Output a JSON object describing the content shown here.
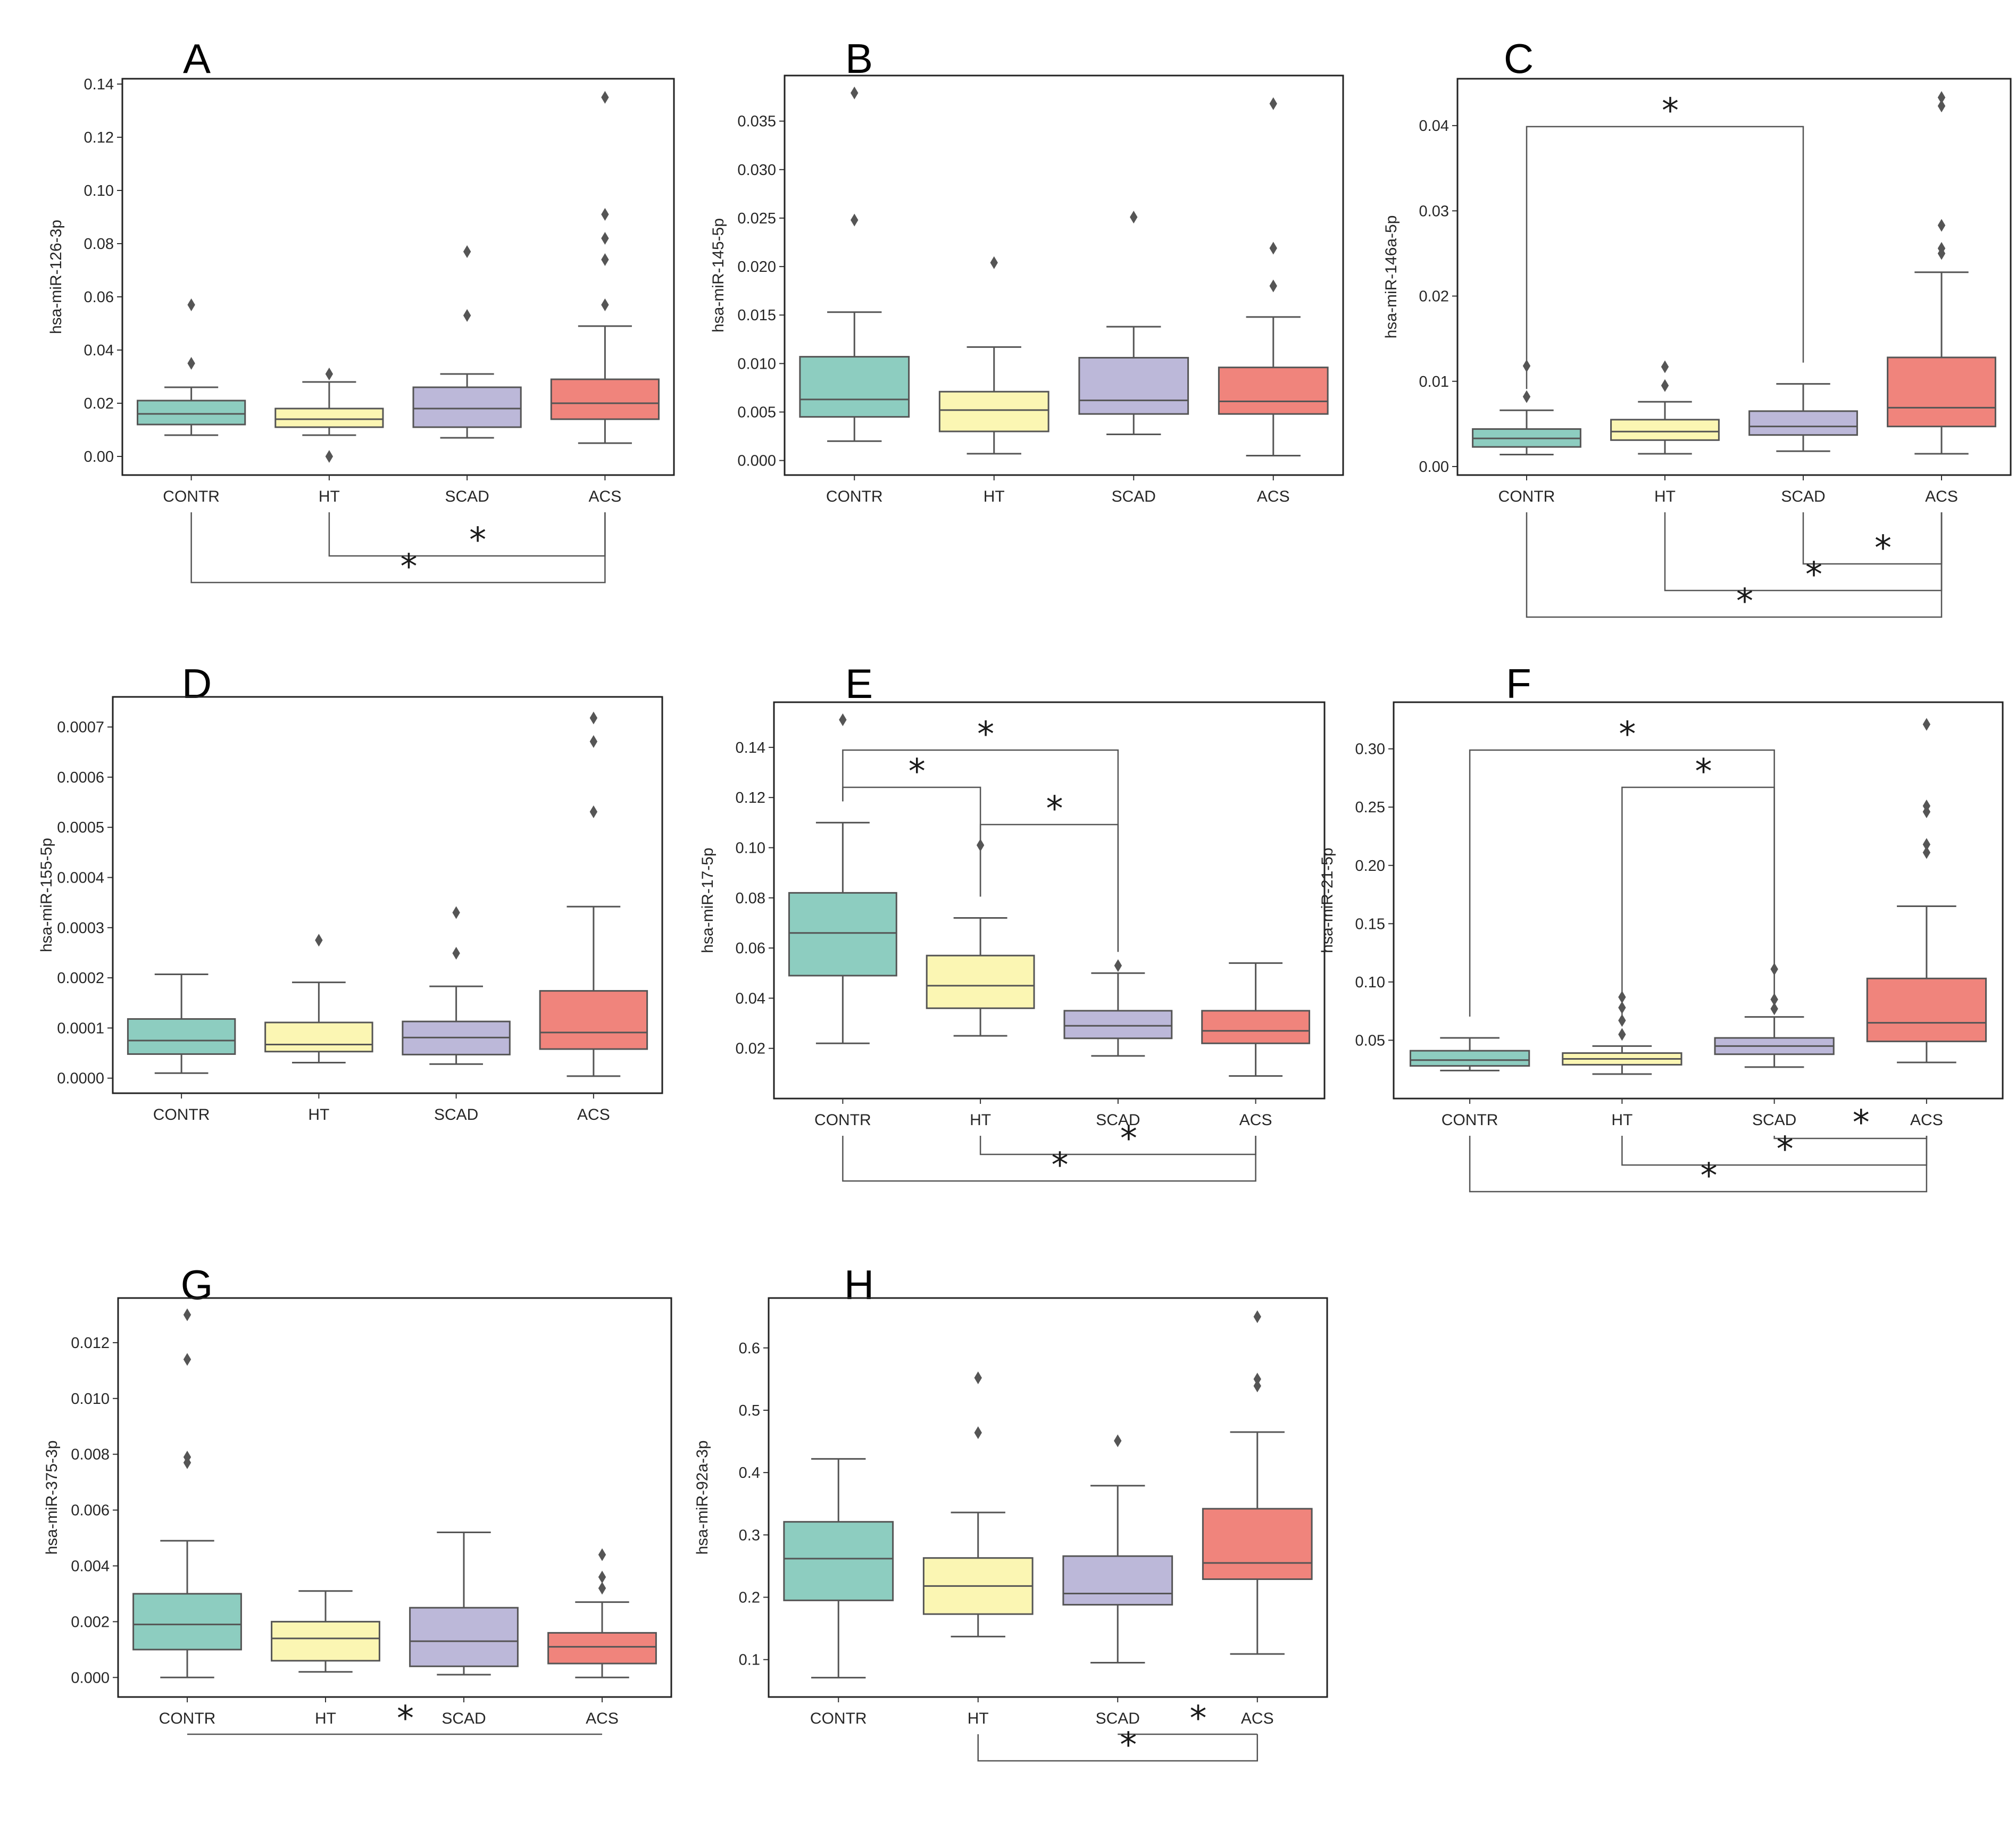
{
  "figure": {
    "group_labels": [
      "CONTR",
      "HT",
      "SCAD",
      "ACS"
    ]
  },
  "colors": {
    "CONTR": "#8dcdc0",
    "HT": "#fbf6b3",
    "SCAD": "#bcb8d9",
    "ACS": "#f0847c",
    "edge": "#555555",
    "outlier": "#555555",
    "bracket": "#555555",
    "frame": "#222222"
  },
  "chart_data": [
    {
      "panel": "A",
      "type": "box",
      "ylabel": "hsa-miR-126-3p",
      "categories": [
        "CONTR",
        "HT",
        "SCAD",
        "ACS"
      ],
      "ylim": [
        -0.007,
        0.142
      ],
      "yticks": [
        0.0,
        0.02,
        0.04,
        0.06,
        0.08,
        0.1,
        0.12,
        0.14
      ],
      "yticklabels": [
        "0.00",
        "0.02",
        "0.04",
        "0.06",
        "0.08",
        "0.10",
        "0.12",
        "0.14"
      ],
      "boxes": [
        {
          "group": "CONTR",
          "whislo": 0.008,
          "q1": 0.012,
          "med": 0.016,
          "q3": 0.021,
          "whishi": 0.026,
          "fliers": [
            0.035,
            0.057
          ]
        },
        {
          "group": "HT",
          "whislo": 0.008,
          "q1": 0.011,
          "med": 0.014,
          "q3": 0.018,
          "whishi": 0.028,
          "fliers": [
            0.031,
            0.0
          ]
        },
        {
          "group": "SCAD",
          "whislo": 0.007,
          "q1": 0.011,
          "med": 0.018,
          "q3": 0.026,
          "whishi": 0.031,
          "fliers": [
            0.053,
            0.077
          ]
        },
        {
          "group": "ACS",
          "whislo": 0.005,
          "q1": 0.014,
          "med": 0.02,
          "q3": 0.029,
          "whishi": 0.049,
          "fliers": [
            0.057,
            0.074,
            0.082,
            0.091,
            0.135
          ]
        }
      ],
      "significance": [
        {
          "from": "HT",
          "to": "ACS",
          "position": "below",
          "label": "*"
        },
        {
          "from": "CONTR",
          "to": "ACS",
          "position": "below",
          "label": "*"
        }
      ]
    },
    {
      "panel": "B",
      "type": "box",
      "ylabel": "hsa-miR-145-5p",
      "categories": [
        "CONTR",
        "HT",
        "SCAD",
        "ACS"
      ],
      "ylim": [
        -0.0015,
        0.0397
      ],
      "yticks": [
        0.0,
        0.005,
        0.01,
        0.015,
        0.02,
        0.025,
        0.03,
        0.035
      ],
      "yticklabels": [
        "0.000",
        "0.005",
        "0.010",
        "0.015",
        "0.020",
        "0.025",
        "0.030",
        "0.035"
      ],
      "boxes": [
        {
          "group": "CONTR",
          "whislo": 0.002,
          "q1": 0.0045,
          "med": 0.0063,
          "q3": 0.0107,
          "whishi": 0.0153,
          "fliers": [
            0.0248,
            0.0379
          ]
        },
        {
          "group": "HT",
          "whislo": 0.0007,
          "q1": 0.003,
          "med": 0.0052,
          "q3": 0.0071,
          "whishi": 0.0117,
          "fliers": [
            0.0204
          ]
        },
        {
          "group": "SCAD",
          "whislo": 0.0027,
          "q1": 0.0048,
          "med": 0.0062,
          "q3": 0.0106,
          "whishi": 0.0138,
          "fliers": [
            0.0251
          ]
        },
        {
          "group": "ACS",
          "whislo": 0.0005,
          "q1": 0.0048,
          "med": 0.0061,
          "q3": 0.0096,
          "whishi": 0.0148,
          "fliers": [
            0.018,
            0.0219,
            0.0368
          ]
        }
      ],
      "significance": []
    },
    {
      "panel": "C",
      "type": "box",
      "ylabel": "hsa-miR-146a-5p",
      "categories": [
        "CONTR",
        "HT",
        "SCAD",
        "ACS"
      ],
      "ylim": [
        -0.001,
        0.0455
      ],
      "yticks": [
        0.0,
        0.01,
        0.02,
        0.03,
        0.04
      ],
      "yticklabels": [
        "0.00",
        "0.01",
        "0.02",
        "0.03",
        "0.04"
      ],
      "boxes": [
        {
          "group": "CONTR",
          "whislo": 0.0014,
          "q1": 0.0023,
          "med": 0.0033,
          "q3": 0.0044,
          "whishi": 0.0066,
          "fliers": [
            0.0082,
            0.0118
          ]
        },
        {
          "group": "HT",
          "whislo": 0.0015,
          "q1": 0.0031,
          "med": 0.0041,
          "q3": 0.0055,
          "whishi": 0.0076,
          "fliers": [
            0.0095,
            0.0117
          ]
        },
        {
          "group": "SCAD",
          "whislo": 0.0018,
          "q1": 0.0037,
          "med": 0.0047,
          "q3": 0.0065,
          "whishi": 0.0097,
          "fliers": []
        },
        {
          "group": "ACS",
          "whislo": 0.0015,
          "q1": 0.0047,
          "med": 0.0069,
          "q3": 0.0128,
          "whishi": 0.0228,
          "fliers": [
            0.025,
            0.0256,
            0.0283,
            0.0423,
            0.0433
          ]
        }
      ],
      "significance": [
        {
          "from": "CONTR",
          "to": "SCAD",
          "position": "above",
          "label": "*"
        },
        {
          "from": "SCAD",
          "to": "ACS",
          "position": "below",
          "label": "*"
        },
        {
          "from": "HT",
          "to": "ACS",
          "position": "below",
          "label": "*"
        },
        {
          "from": "CONTR",
          "to": "ACS",
          "position": "below",
          "label": "*"
        }
      ]
    },
    {
      "panel": "D",
      "type": "box",
      "ylabel": "hsa-miR-155-5p",
      "categories": [
        "CONTR",
        "HT",
        "SCAD",
        "ACS"
      ],
      "ylim": [
        -3e-05,
        0.00076
      ],
      "yticks": [
        0.0,
        0.0001,
        0.0002,
        0.0003,
        0.0004,
        0.0005,
        0.0006,
        0.0007
      ],
      "yticklabels": [
        "0.0000",
        "0.0001",
        "0.0002",
        "0.0003",
        "0.0004",
        "0.0005",
        "0.0006",
        "0.0007"
      ],
      "boxes": [
        {
          "group": "CONTR",
          "whislo": 1e-05,
          "q1": 4.8e-05,
          "med": 7.5e-05,
          "q3": 0.000118,
          "whishi": 0.000207,
          "fliers": []
        },
        {
          "group": "HT",
          "whislo": 3.1e-05,
          "q1": 5.3e-05,
          "med": 6.7e-05,
          "q3": 0.000111,
          "whishi": 0.000191,
          "fliers": [
            0.000275
          ]
        },
        {
          "group": "SCAD",
          "whislo": 2.8e-05,
          "q1": 4.7e-05,
          "med": 8.1e-05,
          "q3": 0.000113,
          "whishi": 0.000183,
          "fliers": [
            0.000249,
            0.00033
          ]
        },
        {
          "group": "ACS",
          "whislo": 4e-06,
          "q1": 5.8e-05,
          "med": 9.1e-05,
          "q3": 0.000174,
          "whishi": 0.000342,
          "fliers": [
            0.000531,
            0.000671,
            0.000718
          ]
        }
      ],
      "significance": []
    },
    {
      "panel": "E",
      "type": "box",
      "ylabel": "hsa-miR-17-5p",
      "categories": [
        "CONTR",
        "HT",
        "SCAD",
        "ACS"
      ],
      "ylim": [
        0.0,
        0.158
      ],
      "yticks": [
        0.02,
        0.04,
        0.06,
        0.08,
        0.1,
        0.12,
        0.14
      ],
      "yticklabels": [
        "0.02",
        "0.04",
        "0.06",
        "0.08",
        "0.10",
        "0.12",
        "0.14"
      ],
      "boxes": [
        {
          "group": "CONTR",
          "whislo": 0.022,
          "q1": 0.049,
          "med": 0.066,
          "q3": 0.082,
          "whishi": 0.11,
          "fliers": [
            0.151
          ]
        },
        {
          "group": "HT",
          "whislo": 0.025,
          "q1": 0.036,
          "med": 0.045,
          "q3": 0.057,
          "whishi": 0.072,
          "fliers": [
            0.101
          ]
        },
        {
          "group": "SCAD",
          "whislo": 0.017,
          "q1": 0.024,
          "med": 0.029,
          "q3": 0.035,
          "whishi": 0.05,
          "fliers": [
            0.053
          ]
        },
        {
          "group": "ACS",
          "whislo": 0.009,
          "q1": 0.022,
          "med": 0.027,
          "q3": 0.035,
          "whishi": 0.054,
          "fliers": []
        }
      ],
      "significance": [
        {
          "from": "CONTR",
          "to": "SCAD",
          "position": "above",
          "label": "*"
        },
        {
          "from": "CONTR",
          "to": "HT",
          "position": "above",
          "label": "*"
        },
        {
          "from": "HT",
          "to": "SCAD",
          "position": "above",
          "label": "*"
        },
        {
          "from": "HT",
          "to": "ACS",
          "position": "below",
          "label": "*"
        },
        {
          "from": "CONTR",
          "to": "ACS",
          "position": "below",
          "label": "*"
        }
      ]
    },
    {
      "panel": "F",
      "type": "box",
      "ylabel": "hsa-miR-21-5p",
      "categories": [
        "CONTR",
        "HT",
        "SCAD",
        "ACS"
      ],
      "ylim": [
        0.0,
        0.34
      ],
      "yticks": [
        0.05,
        0.1,
        0.15,
        0.2,
        0.25,
        0.3
      ],
      "yticklabels": [
        "0.05",
        "0.10",
        "0.15",
        "0.20",
        "0.25",
        "0.30"
      ],
      "boxes": [
        {
          "group": "CONTR",
          "whislo": 0.024,
          "q1": 0.028,
          "med": 0.033,
          "q3": 0.041,
          "whishi": 0.052,
          "fliers": []
        },
        {
          "group": "HT",
          "whislo": 0.021,
          "q1": 0.029,
          "med": 0.034,
          "q3": 0.039,
          "whishi": 0.045,
          "fliers": [
            0.055,
            0.067,
            0.078,
            0.087
          ]
        },
        {
          "group": "SCAD",
          "whislo": 0.027,
          "q1": 0.038,
          "med": 0.045,
          "q3": 0.052,
          "whishi": 0.07,
          "fliers": [
            0.077,
            0.085,
            0.111
          ]
        },
        {
          "group": "ACS",
          "whislo": 0.031,
          "q1": 0.049,
          "med": 0.065,
          "q3": 0.103,
          "whishi": 0.165,
          "fliers": [
            0.211,
            0.218,
            0.246,
            0.251,
            0.321
          ]
        }
      ],
      "significance": [
        {
          "from": "CONTR",
          "to": "SCAD",
          "position": "above",
          "label": "*"
        },
        {
          "from": "HT",
          "to": "SCAD",
          "position": "above",
          "label": "*"
        },
        {
          "from": "SCAD",
          "to": "ACS",
          "position": "below",
          "label": "*"
        },
        {
          "from": "HT",
          "to": "ACS",
          "position": "below",
          "label": "*"
        },
        {
          "from": "CONTR",
          "to": "ACS",
          "position": "below",
          "label": "*"
        }
      ]
    },
    {
      "panel": "G",
      "type": "box",
      "ylabel": "hsa-miR-375-3p",
      "categories": [
        "CONTR",
        "HT",
        "SCAD",
        "ACS"
      ],
      "ylim": [
        -0.0007,
        0.0136
      ],
      "yticks": [
        0.0,
        0.002,
        0.004,
        0.006,
        0.008,
        0.01,
        0.012
      ],
      "yticklabels": [
        "0.000",
        "0.002",
        "0.004",
        "0.006",
        "0.008",
        "0.010",
        "0.012"
      ],
      "boxes": [
        {
          "group": "CONTR",
          "whislo": 0.0,
          "q1": 0.001,
          "med": 0.0019,
          "q3": 0.003,
          "whishi": 0.0049,
          "fliers": [
            0.0077,
            0.0079,
            0.0114,
            0.013
          ]
        },
        {
          "group": "HT",
          "whislo": 0.0002,
          "q1": 0.0006,
          "med": 0.0014,
          "q3": 0.002,
          "whishi": 0.0031,
          "fliers": []
        },
        {
          "group": "SCAD",
          "whislo": 0.0001,
          "q1": 0.0004,
          "med": 0.0013,
          "q3": 0.0025,
          "whishi": 0.0052,
          "fliers": []
        },
        {
          "group": "ACS",
          "whislo": 0.0,
          "q1": 0.0005,
          "med": 0.0011,
          "q3": 0.0016,
          "whishi": 0.0027,
          "fliers": [
            0.0032,
            0.0036,
            0.0044
          ]
        }
      ],
      "significance": [
        {
          "from": "CONTR",
          "to": "ACS",
          "position": "below",
          "label": "*"
        }
      ]
    },
    {
      "panel": "H",
      "type": "box",
      "ylabel": "hsa-miR-92a-3p",
      "categories": [
        "CONTR",
        "HT",
        "SCAD",
        "ACS"
      ],
      "ylim": [
        0.04,
        0.68
      ],
      "yticks": [
        0.1,
        0.2,
        0.3,
        0.4,
        0.5,
        0.6
      ],
      "yticklabels": [
        "0.1",
        "0.2",
        "0.3",
        "0.4",
        "0.5",
        "0.6"
      ],
      "boxes": [
        {
          "group": "CONTR",
          "whislo": 0.071,
          "q1": 0.195,
          "med": 0.262,
          "q3": 0.321,
          "whishi": 0.422,
          "fliers": []
        },
        {
          "group": "HT",
          "whislo": 0.137,
          "q1": 0.173,
          "med": 0.218,
          "q3": 0.263,
          "whishi": 0.336,
          "fliers": [
            0.464,
            0.552
          ]
        },
        {
          "group": "SCAD",
          "whislo": 0.095,
          "q1": 0.188,
          "med": 0.206,
          "q3": 0.266,
          "whishi": 0.379,
          "fliers": [
            0.451
          ]
        },
        {
          "group": "ACS",
          "whislo": 0.109,
          "q1": 0.229,
          "med": 0.255,
          "q3": 0.342,
          "whishi": 0.465,
          "fliers": [
            0.539,
            0.55,
            0.65
          ]
        }
      ],
      "significance": [
        {
          "from": "SCAD",
          "to": "ACS",
          "position": "below",
          "label": "*"
        },
        {
          "from": "HT",
          "to": "ACS",
          "position": "below",
          "label": "*"
        }
      ]
    }
  ]
}
